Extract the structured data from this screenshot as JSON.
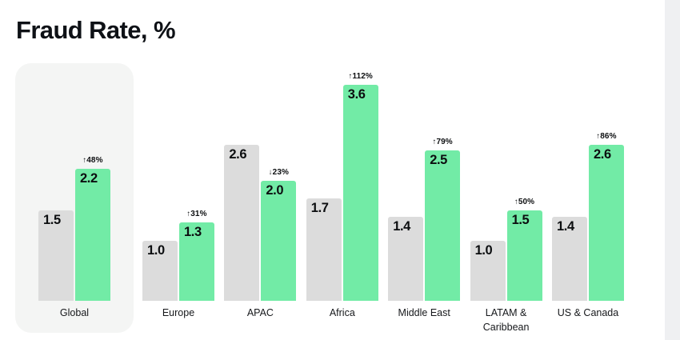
{
  "title": "Fraud Rate, %",
  "chart_data": {
    "type": "bar",
    "title": "Fraud Rate, %",
    "unit": "%",
    "value_format": "one_decimal",
    "legend": "none",
    "axes": "none (value labels printed on bars)",
    "series_names": [
      "previous-period",
      "current-period"
    ],
    "colors": {
      "previous_bar": "#dcdcdc",
      "current_bar": "#72eba6",
      "global_card_bg": "#f4f5f4",
      "right_strip_bg": "#eff0f2",
      "text": "#0e1116"
    },
    "groups": [
      {
        "label": "Global",
        "prev": 1.5,
        "curr": 2.2,
        "change": "48%",
        "direction": "up",
        "highlighted_card": true
      },
      {
        "label": "Europe",
        "prev": 1.0,
        "curr": 1.3,
        "change": "31%",
        "direction": "up"
      },
      {
        "label": "APAC",
        "prev": 2.6,
        "curr": 2.0,
        "change": "23%",
        "direction": "down"
      },
      {
        "label": "Africa",
        "prev": 1.7,
        "curr": 3.6,
        "change": "112%",
        "direction": "up"
      },
      {
        "label": "Middle East",
        "prev": 1.4,
        "curr": 2.5,
        "change": "79%",
        "direction": "up"
      },
      {
        "label": "LATAM & Caribbean",
        "label_lines": [
          "LATAM &",
          "Caribbean"
        ],
        "prev": 1.0,
        "curr": 1.5,
        "change": "50%",
        "direction": "up"
      },
      {
        "label": "US & Canada",
        "prev": 1.4,
        "curr": 2.6,
        "change": "86%",
        "direction": "up"
      }
    ],
    "arrow_up_glyph": "↑",
    "arrow_down_glyph": "↓"
  }
}
